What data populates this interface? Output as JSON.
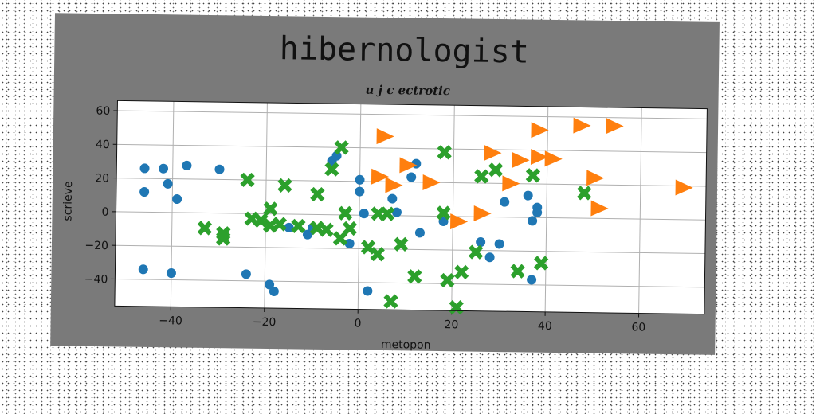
{
  "chart_data": {
    "type": "scatter",
    "title": "hibernologist",
    "subtitle": "u j c ectrotic",
    "xlabel": "metopon",
    "ylabel": "scrieve",
    "xlim": [
      -52,
      74
    ],
    "ylim": [
      -56,
      66
    ],
    "xticks": [
      -40,
      -20,
      0,
      20,
      40,
      60
    ],
    "yticks": [
      -40,
      -20,
      0,
      20,
      40,
      60
    ],
    "grid": true,
    "colors": {
      "frame": "#7a7a7a",
      "plot_bg": "#ffffff",
      "grid": "#b0b0b0"
    },
    "series": [
      {
        "marker": "circle",
        "color": "#1f77b4",
        "points": [
          [
            -46,
            26
          ],
          [
            -42,
            26
          ],
          [
            -46,
            12
          ],
          [
            -41,
            17
          ],
          [
            -37,
            28
          ],
          [
            -39,
            8
          ],
          [
            -30,
            26
          ],
          [
            -46,
            -34
          ],
          [
            -40,
            -36
          ],
          [
            -24,
            -36
          ],
          [
            -19,
            -42
          ],
          [
            -18,
            -46
          ],
          [
            -15,
            -8
          ],
          [
            -11,
            -12
          ],
          [
            -10,
            -8
          ],
          [
            -6,
            32
          ],
          [
            -5,
            35
          ],
          [
            -2,
            -17
          ],
          [
            0,
            21
          ],
          [
            0,
            14
          ],
          [
            1,
            1
          ],
          [
            2,
            -45
          ],
          [
            7,
            10
          ],
          [
            8,
            2
          ],
          [
            11,
            23
          ],
          [
            12,
            31
          ],
          [
            13,
            -10
          ],
          [
            18,
            -3
          ],
          [
            26,
            -15
          ],
          [
            28,
            -24
          ],
          [
            30,
            -16
          ],
          [
            31,
            9
          ],
          [
            36,
            13
          ],
          [
            37,
            -2
          ],
          [
            38,
            6
          ],
          [
            38,
            3
          ],
          [
            37,
            -37
          ]
        ]
      },
      {
        "marker": "triangle",
        "color": "#ff7f0e",
        "points": [
          [
            5,
            47
          ],
          [
            4,
            23
          ],
          [
            7,
            18
          ],
          [
            10,
            30
          ],
          [
            15,
            20
          ],
          [
            21,
            -3
          ],
          [
            26,
            2
          ],
          [
            28,
            38
          ],
          [
            32,
            20
          ],
          [
            34,
            34
          ],
          [
            38,
            36
          ],
          [
            41,
            35
          ],
          [
            38,
            52
          ],
          [
            47,
            55
          ],
          [
            54,
            55
          ],
          [
            50,
            24
          ],
          [
            51,
            6
          ],
          [
            69,
            19
          ]
        ]
      },
      {
        "marker": "x",
        "color": "#2ca02c",
        "points": [
          [
            -33,
            -9
          ],
          [
            -29,
            -12
          ],
          [
            -29,
            -15
          ],
          [
            -24,
            20
          ],
          [
            -23,
            -3
          ],
          [
            -21,
            -4
          ],
          [
            -19,
            -7
          ],
          [
            -19,
            3
          ],
          [
            -17,
            -6
          ],
          [
            -16,
            17
          ],
          [
            -13,
            -7
          ],
          [
            -9,
            -8
          ],
          [
            -9,
            12
          ],
          [
            -7,
            -9
          ],
          [
            -6,
            27
          ],
          [
            -4,
            40
          ],
          [
            -4,
            -14
          ],
          [
            -3,
            1
          ],
          [
            -2,
            -8
          ],
          [
            2,
            -19
          ],
          [
            4,
            -23
          ],
          [
            4,
            1
          ],
          [
            6,
            1
          ],
          [
            7,
            -51
          ],
          [
            9,
            -17
          ],
          [
            12,
            -36
          ],
          [
            18,
            38
          ],
          [
            18,
            2
          ],
          [
            19,
            -38
          ],
          [
            21,
            -54
          ],
          [
            22,
            -33
          ],
          [
            25,
            -21
          ],
          [
            26,
            24
          ],
          [
            29,
            28
          ],
          [
            34,
            -32
          ],
          [
            37,
            25
          ],
          [
            39,
            -27
          ],
          [
            48,
            15
          ]
        ]
      }
    ]
  }
}
